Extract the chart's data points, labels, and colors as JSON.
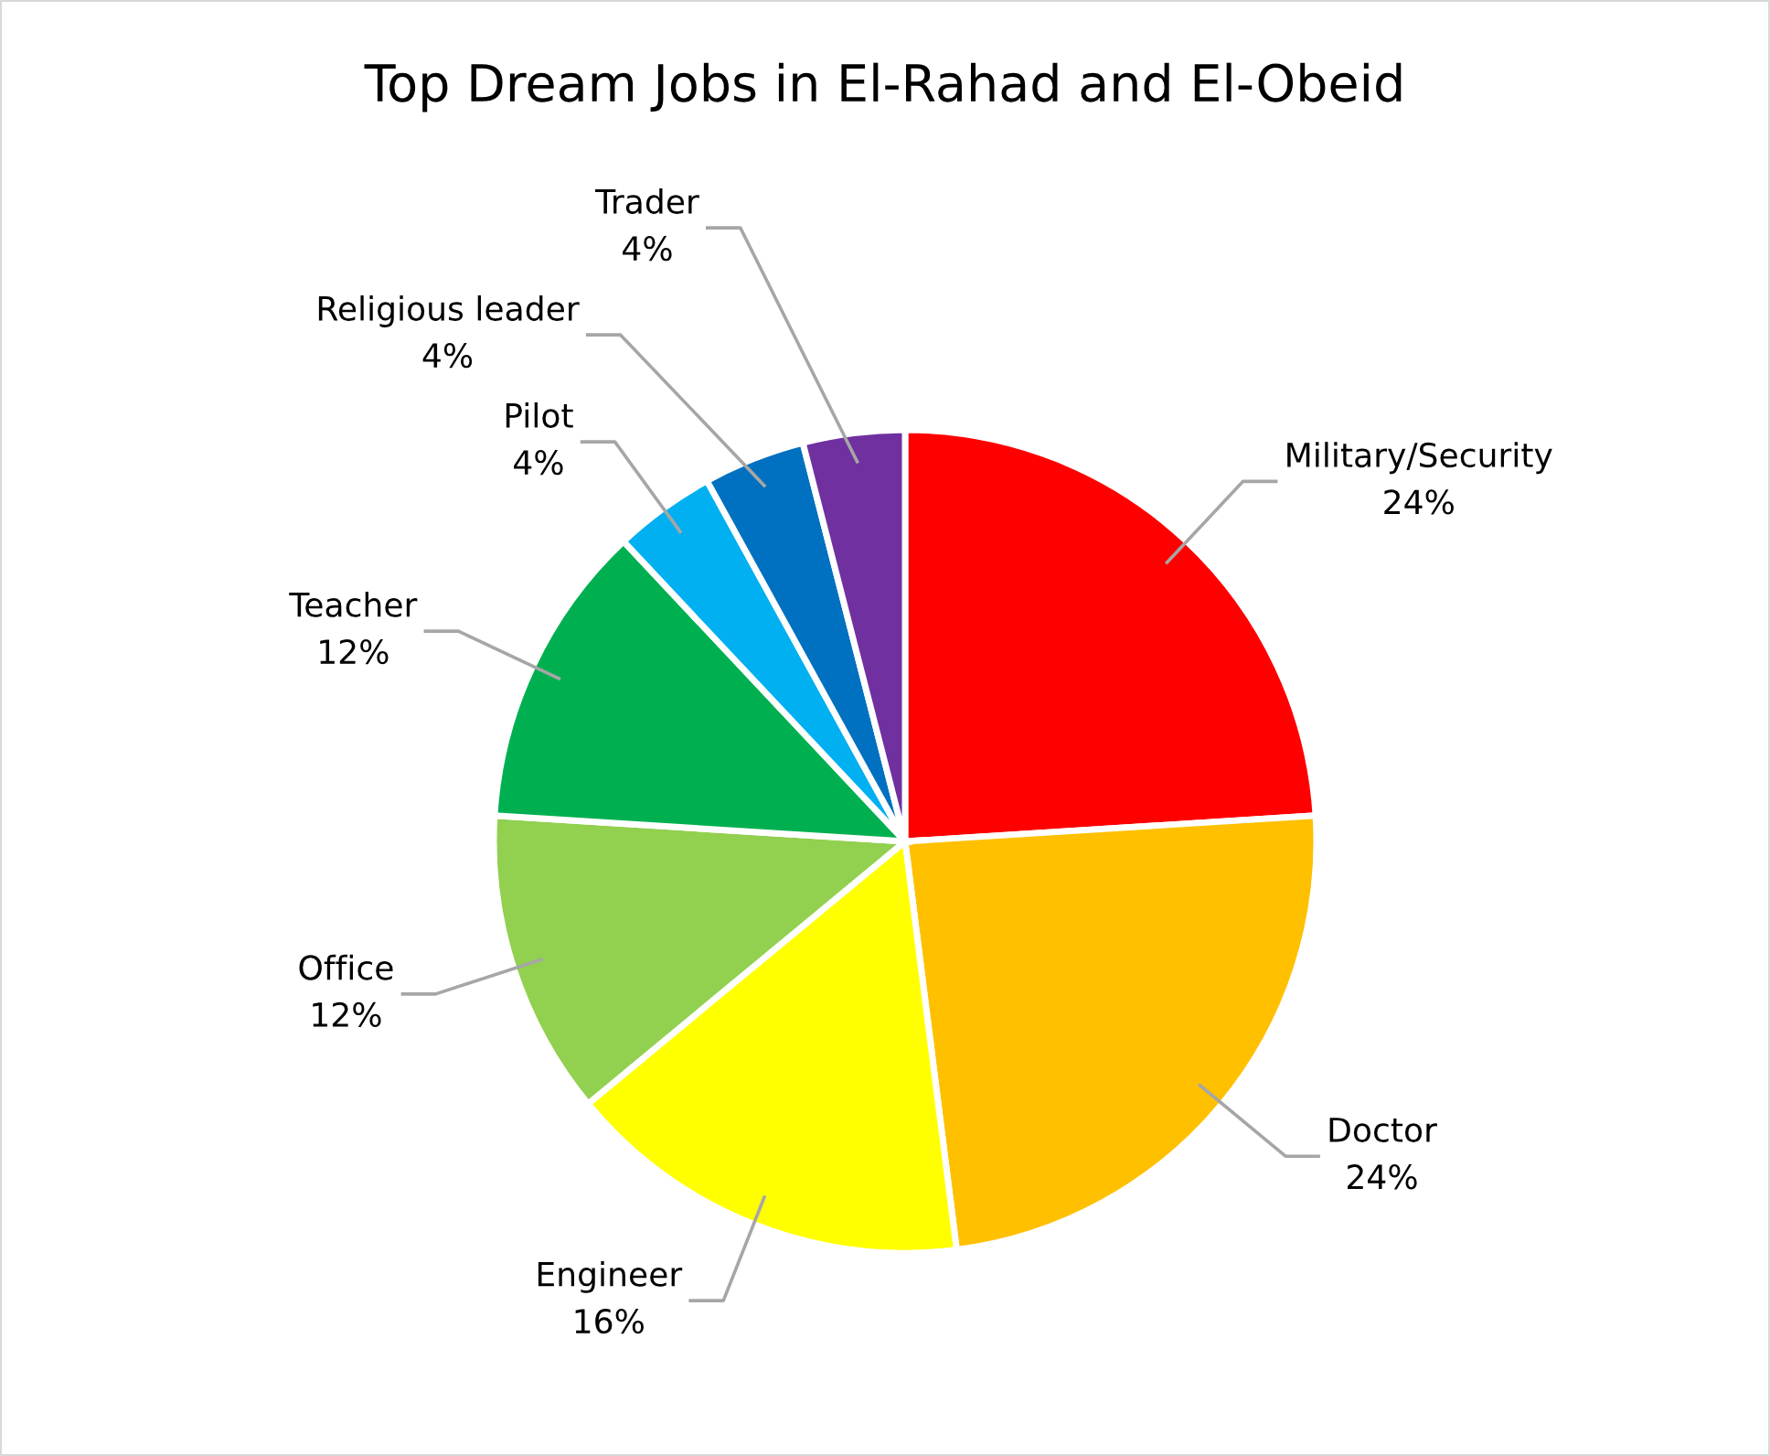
{
  "chart_data": {
    "type": "pie",
    "title": "Top Dream Jobs in El-Rahad and El-Obeid",
    "categories": [
      "Military/Security",
      "Doctor",
      "Engineer",
      "Office",
      "Teacher",
      "Pilot",
      "Religious leader",
      "Trader"
    ],
    "values": [
      24,
      24,
      16,
      12,
      12,
      4,
      4,
      4
    ],
    "value_labels": [
      "24%",
      "24%",
      "16%",
      "12%",
      "12%",
      "4%",
      "4%",
      "4%"
    ],
    "colors": [
      "#ff0000",
      "#ffc000",
      "#ffff00",
      "#92d050",
      "#00b050",
      "#00b0f0",
      "#0070c0",
      "#7030a0"
    ],
    "legend": false
  }
}
